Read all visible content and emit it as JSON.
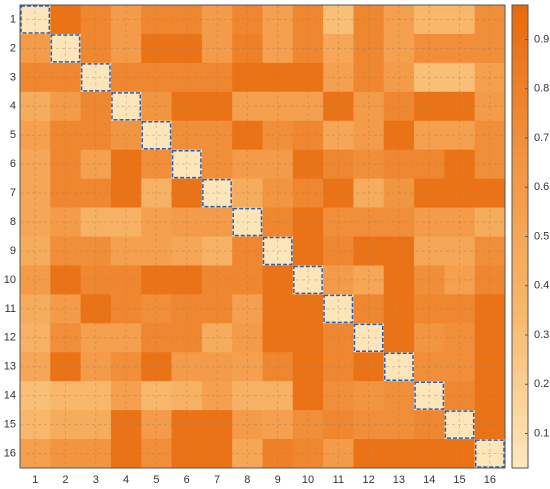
{
  "chart_data": {
    "type": "heatmap",
    "xcategories": [
      1,
      2,
      3,
      4,
      5,
      6,
      7,
      8,
      9,
      10,
      11,
      12,
      13,
      14,
      15,
      16
    ],
    "ycategories": [
      1,
      2,
      3,
      4,
      5,
      6,
      7,
      8,
      9,
      10,
      11,
      12,
      13,
      14,
      15,
      16
    ],
    "values": [
      [
        0.05,
        0.9,
        0.75,
        0.6,
        0.75,
        0.75,
        0.6,
        0.75,
        0.55,
        0.75,
        0.3,
        0.75,
        0.55,
        0.35,
        0.35,
        0.7
      ],
      [
        0.6,
        0.05,
        0.75,
        0.6,
        0.9,
        0.9,
        0.6,
        0.8,
        0.55,
        0.75,
        0.5,
        0.75,
        0.55,
        0.7,
        0.7,
        0.7
      ],
      [
        0.75,
        0.75,
        0.05,
        0.75,
        0.75,
        0.75,
        0.75,
        0.9,
        0.9,
        0.9,
        0.55,
        0.75,
        0.6,
        0.3,
        0.3,
        0.55
      ],
      [
        0.45,
        0.6,
        0.75,
        0.05,
        0.65,
        0.9,
        0.9,
        0.55,
        0.55,
        0.55,
        0.9,
        0.6,
        0.75,
        0.9,
        0.9,
        0.6
      ],
      [
        0.55,
        0.75,
        0.75,
        0.65,
        0.05,
        0.7,
        0.7,
        0.9,
        0.7,
        0.75,
        0.5,
        0.6,
        0.9,
        0.55,
        0.55,
        0.7
      ],
      [
        0.5,
        0.75,
        0.55,
        0.9,
        0.7,
        0.05,
        0.7,
        0.6,
        0.6,
        0.9,
        0.75,
        0.7,
        0.75,
        0.75,
        0.9,
        0.7
      ],
      [
        0.5,
        0.75,
        0.75,
        0.9,
        0.4,
        0.9,
        0.05,
        0.45,
        0.65,
        0.75,
        0.9,
        0.45,
        0.65,
        0.9,
        0.9,
        0.9
      ],
      [
        0.5,
        0.6,
        0.4,
        0.4,
        0.55,
        0.6,
        0.6,
        0.05,
        0.75,
        0.9,
        0.7,
        0.7,
        0.7,
        0.6,
        0.6,
        0.45
      ],
      [
        0.45,
        0.7,
        0.7,
        0.55,
        0.55,
        0.5,
        0.4,
        0.75,
        0.05,
        0.9,
        0.75,
        0.9,
        0.9,
        0.5,
        0.5,
        0.7
      ],
      [
        0.6,
        0.9,
        0.75,
        0.75,
        0.9,
        0.9,
        0.75,
        0.75,
        0.9,
        0.05,
        0.6,
        0.5,
        0.9,
        0.7,
        0.55,
        0.75
      ],
      [
        0.45,
        0.6,
        0.9,
        0.75,
        0.7,
        0.75,
        0.75,
        0.55,
        0.9,
        0.9,
        0.05,
        0.75,
        0.9,
        0.75,
        0.75,
        0.9
      ],
      [
        0.4,
        0.7,
        0.55,
        0.55,
        0.75,
        0.75,
        0.45,
        0.6,
        0.9,
        0.9,
        0.75,
        0.05,
        0.9,
        0.65,
        0.7,
        0.9
      ],
      [
        0.5,
        0.9,
        0.6,
        0.7,
        0.9,
        0.6,
        0.6,
        0.55,
        0.75,
        0.9,
        0.75,
        0.9,
        0.05,
        0.7,
        0.7,
        0.9
      ],
      [
        0.3,
        0.35,
        0.35,
        0.55,
        0.35,
        0.4,
        0.55,
        0.4,
        0.4,
        0.9,
        0.7,
        0.65,
        0.7,
        0.05,
        0.75,
        0.9
      ],
      [
        0.35,
        0.45,
        0.45,
        0.9,
        0.6,
        0.9,
        0.9,
        0.6,
        0.55,
        0.7,
        0.75,
        0.7,
        0.7,
        0.75,
        0.05,
        0.9
      ],
      [
        0.55,
        0.65,
        0.65,
        0.9,
        0.7,
        0.9,
        0.9,
        0.5,
        0.8,
        0.75,
        0.6,
        0.9,
        0.9,
        0.9,
        0.9,
        0.05
      ]
    ],
    "colorbar_lim": [
      0.03,
      0.97
    ],
    "colorbar_ticks": [
      0.1,
      0.2,
      0.3,
      0.4,
      0.5,
      0.6,
      0.7,
      0.8,
      0.9
    ],
    "colormap": [
      "#fde8bf",
      "#f8b86c",
      "#f29440",
      "#e8690c"
    ],
    "grid": true,
    "highlight_diagonal": true,
    "highlight_color": "#2a5fb0"
  }
}
